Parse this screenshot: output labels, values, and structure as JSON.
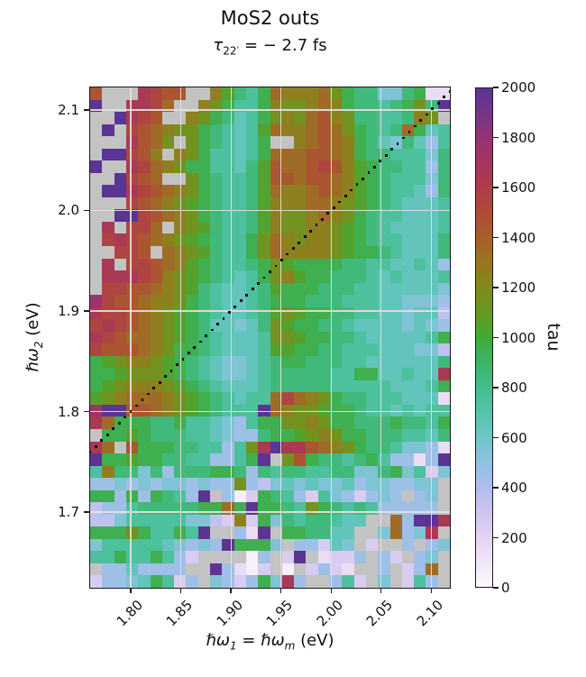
{
  "title": "MoS2 outs",
  "subtitle": {
    "tau": "τ",
    "sub": "22′",
    "rest": " = − 2.7 fs"
  },
  "axes": {
    "x_axis": {
      "label_var1": "ℏω",
      "label_sub1": "1",
      "label_eq": " = ",
      "label_var2": "ℏω",
      "label_sub2": "m",
      "label_unit": " (eV)",
      "tick_labels": [
        "1.80",
        "1.85",
        "1.90",
        "1.95",
        "2.00",
        "2.05",
        "2.10"
      ],
      "tick_values": [
        1.8,
        1.85,
        1.9,
        1.95,
        2.0,
        2.05,
        2.1
      ]
    },
    "y_axis": {
      "label_var": "ℏω",
      "label_sub": "2",
      "label_unit": " (eV)",
      "tick_labels": [
        "2.1",
        "2.0",
        "1.9",
        "1.8",
        "1.7"
      ],
      "tick_values": [
        2.1,
        2.0,
        1.9,
        1.8,
        1.7
      ]
    }
  },
  "chart_data": {
    "type": "heatmap",
    "title": "MoS2 outs",
    "subtitle": "τ_22′ = −2.7 fs",
    "xlabel": "ℏω_1 = ℏω_m (eV)",
    "ylabel": "ℏω_2 (eV)",
    "x_range": [
      1.7595,
      2.1186
    ],
    "y_range": [
      1.6247,
      2.1224
    ],
    "n_cols": 30,
    "n_rows": 41,
    "grid_on": true,
    "nan_color": "#c3c3c3",
    "value_encoding": {
      "chars": "0123456789ABCDEFGHIJK",
      "rule": "value = index*100+50 (K=2000)",
      "nan_char": "."
    },
    "grid_rows_top_to_bottom": [
      "E...GFEE..CA879DCCCDB988558911",
      "K..GGFD..CB9779CBBCDC988789B8K",
      "..KGFE..CB98679BCBDECB88778CB.",
      ".K.FEDCBB98767ADCCDEDB9878D967",
      "...GEDB.B987679..CDEDC98658647",
      ".KKFEC.CB977679DDDEEDC98877758",
      "K..GFDCB997768AEDDEFECA9887748",
      "..KFED..B98778AEEDEEDCA9877758",
      ".KKGFEDCB98778ADCCDEDCA9877648",
      "...FEDCBA98778ACCCDDCBA9876667",
      "..KKFEDCB98778ACBBCDCB98776667",
      ".G.FFD.CBA8778ACBBCCBA98766667",
      ".FGFEDCBA98779BDCBCCBA98776668",
      "..FFE.DCBA8779BDCCCCBA99876668",
      ".G.FFEDCA987789BA9999887766764",
      ".GGGFECBA987679BCA998887676667",
      ".FFEEDCBA876678A99988877666665",
      "HFEEDCCB9876678999888777665554",
      "GFFEDCBA9876678ABA998877665663",
      "FGFEDCBA9866568BA9988766665654",
      "GFEDDCBA9876667BBA998876666679",
      "FEEEDCB99876667AA9988777666553",
      "9ABCCBA98765567899888776666668",
      "99ABBBA9876556788888779966766G",
      "9ABCCCBA9876667888887777766679",
      "ABCDDDCBA987677DFDCB9887776661",
      "HKKEEDCBA98777KDCBBA9987767677",
      "GD99988977654799BBCB9988898879",
      ".99A9888776544899ABCB998887768",
      "GD.E999887747BGKGGEDCB98875541",
      "K99A9988774479K.BE98878974414K",
      "7C8858488899848788778855895725",
      "445454554544B4356565564554455.",
      "994949874K.402987427542454.45.",
      "34478888899D9K9987B9878744444.",
      "335777775532C2958788766..D4KKG",
      "999B97797K..41K.998866..5D45G.",
      "57777765454K9995.44265.2..4.45",
      "779779742....04.2K.1224.42.45.",
      ".4464444..K4102.0.2421..4.24D.",
      "244569724.542495G4..472.5.274."
    ],
    "diagonal_line": {
      "style": "dotted",
      "color": "#0a0a0a",
      "from": [
        1.7595,
        1.7595
      ],
      "to": [
        2.1186,
        2.1186
      ]
    },
    "colorbar": {
      "label": "tau",
      "vmin": 0,
      "vmax": 2000,
      "tick_labels": [
        "0",
        "200",
        "400",
        "600",
        "800",
        "1000",
        "1200",
        "1400",
        "1600",
        "1800",
        "2000"
      ],
      "tick_values": [
        0,
        200,
        400,
        600,
        800,
        1000,
        1200,
        1400,
        1600,
        1800,
        2000
      ]
    },
    "colormap_stops": [
      [
        0,
        "#fcf8fd"
      ],
      [
        100,
        "#f1e5f8"
      ],
      [
        200,
        "#e3d3f2"
      ],
      [
        300,
        "#cfc4f0"
      ],
      [
        400,
        "#aebdee"
      ],
      [
        500,
        "#8ec2e0"
      ],
      [
        600,
        "#6ec5c8"
      ],
      [
        700,
        "#55c3ab"
      ],
      [
        800,
        "#44bd8e"
      ],
      [
        900,
        "#3cb466"
      ],
      [
        1000,
        "#42a938"
      ],
      [
        1100,
        "#649a22"
      ],
      [
        1200,
        "#828a1b"
      ],
      [
        1300,
        "#9a7520"
      ],
      [
        1400,
        "#a6602b"
      ],
      [
        1500,
        "#af4c37"
      ],
      [
        1600,
        "#ae3d4a"
      ],
      [
        1700,
        "#a63560"
      ],
      [
        1800,
        "#943376"
      ],
      [
        1900,
        "#763488"
      ],
      [
        2000,
        "#5b3494"
      ]
    ]
  }
}
